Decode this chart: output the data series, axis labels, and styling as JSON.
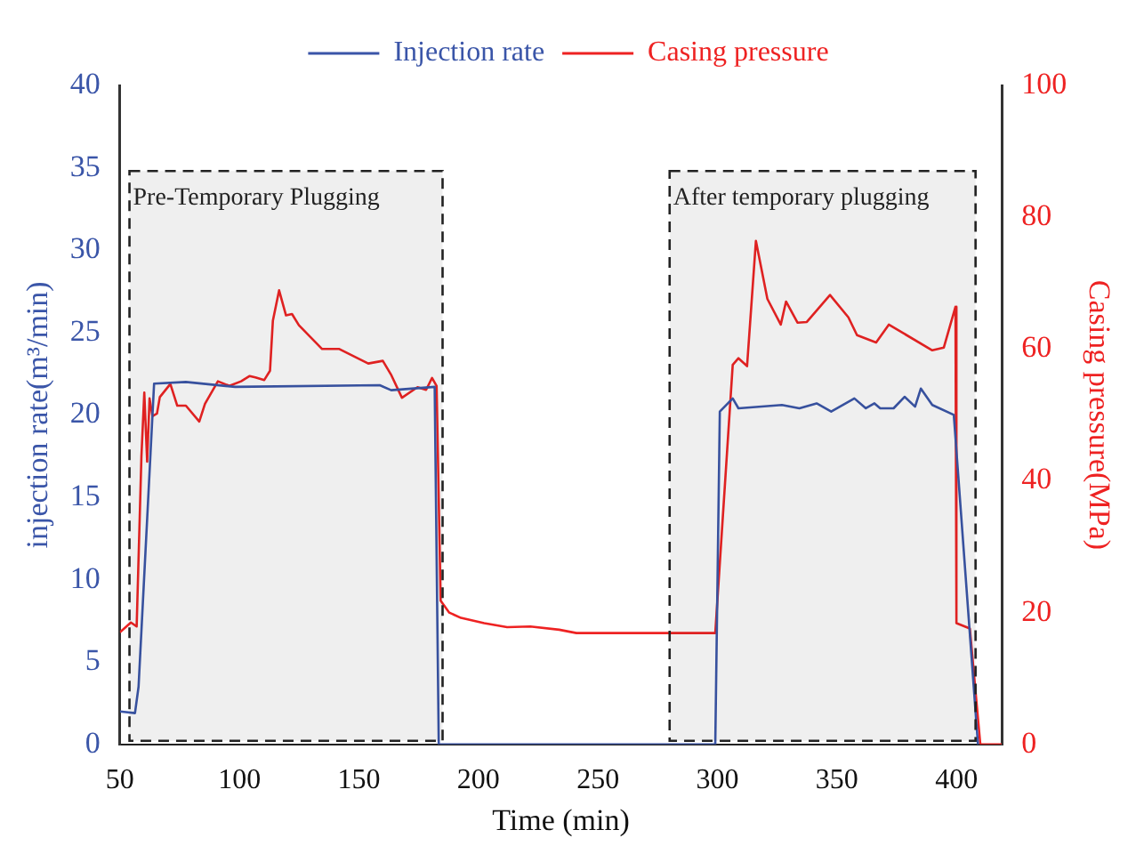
{
  "chart_data": {
    "type": "line",
    "xlabel": "Time (min)",
    "ylabel": "injection rate(m³/min)",
    "y2label": "Casing pressure(MPa)",
    "xlim": [
      50,
      419
    ],
    "xticks": [
      50,
      100,
      150,
      200,
      250,
      300,
      350,
      400
    ],
    "ylim": [
      0,
      40
    ],
    "yticks": [
      0,
      5,
      10,
      15,
      20,
      25,
      30,
      35,
      40
    ],
    "y2lim": [
      0,
      100
    ],
    "y2ticks": [
      0,
      20,
      40,
      60,
      80,
      100
    ],
    "grid": false,
    "legend": "top",
    "line_style": "solid",
    "marker": "none",
    "bands": [
      {
        "axis": "x",
        "from": 54,
        "to": 185,
        "label": "Pre-Temporary Plugging",
        "color": "#222222"
      },
      {
        "axis": "x",
        "from": 280,
        "to": 408,
        "label": "After temporary plugging",
        "color": "#222222"
      }
    ],
    "series": [
      {
        "name": "Injection rate",
        "color": "#3a55a8",
        "x": [
          50,
          56.3,
          57.8,
          64.3,
          77.6,
          98.2,
          158.7,
          163.5,
          181.7,
          183.4,
          299.1,
          301,
          306.4,
          308.8,
          327,
          334.3,
          341.5,
          347.6,
          357.3,
          362.1,
          365.7,
          368.1,
          373.7,
          378.3,
          382.7,
          385.1,
          389.9,
          398.9,
          409
        ],
        "values": [
          2,
          1.9,
          3.5,
          21.9,
          22,
          21.7,
          21.8,
          21.5,
          21.7,
          0,
          0,
          20.2,
          21,
          20.4,
          20.6,
          20.4,
          20.7,
          20.2,
          21,
          20.4,
          20.7,
          20.4,
          20.4,
          21.1,
          20.5,
          21.6,
          20.6,
          20,
          0
        ]
      },
      {
        "name": "Casing pressure",
        "color": "#ee2222",
        "axis": "y2",
        "x": [
          50,
          54.6,
          57,
          59,
          60.2,
          61.4,
          62.4,
          63.6,
          65.5,
          66.7,
          71.1,
          74,
          77.6,
          83.2,
          85.6,
          91,
          95.8,
          100.7,
          104.3,
          106.7,
          110.4,
          112.8,
          114,
          116.6,
          119.5,
          122,
          124.9,
          134.6,
          141.8,
          153.9,
          160,
          163.6,
          168,
          174.5,
          178.1,
          180.6,
          182.5,
          184.2,
          187.8,
          192.7,
          202.4,
          212,
          221.7,
          233.8,
          241,
          299.1,
          306.4,
          308.8,
          312.4,
          316.1,
          320.9,
          326.5,
          328.7,
          333.5,
          337.4,
          347.1,
          354.8,
          358.4,
          366.4,
          371.7,
          389.9,
          394.7,
          399.6,
          400,
          405.6,
          410,
          419
        ],
        "values": [
          17,
          18.5,
          17.9,
          43.7,
          53.4,
          42.9,
          52.5,
          49.8,
          50.2,
          52.7,
          54.7,
          51.4,
          51.4,
          49,
          51.7,
          55.1,
          54.4,
          55.1,
          55.9,
          55.7,
          55.3,
          56.7,
          64.3,
          68.9,
          65.1,
          65.3,
          63.6,
          60,
          60,
          57.8,
          58.2,
          56,
          52.6,
          54.2,
          53.8,
          55.6,
          54.4,
          21.8,
          20,
          19.2,
          18.4,
          17.8,
          17.9,
          17.4,
          16.9,
          16.9,
          57.6,
          58.6,
          57.4,
          76.4,
          67.6,
          63.7,
          67.2,
          64,
          64.1,
          68.2,
          64.8,
          62.1,
          61,
          63.7,
          59.8,
          60.2,
          66.4,
          18.4,
          17.6,
          0,
          0
        ]
      }
    ]
  }
}
